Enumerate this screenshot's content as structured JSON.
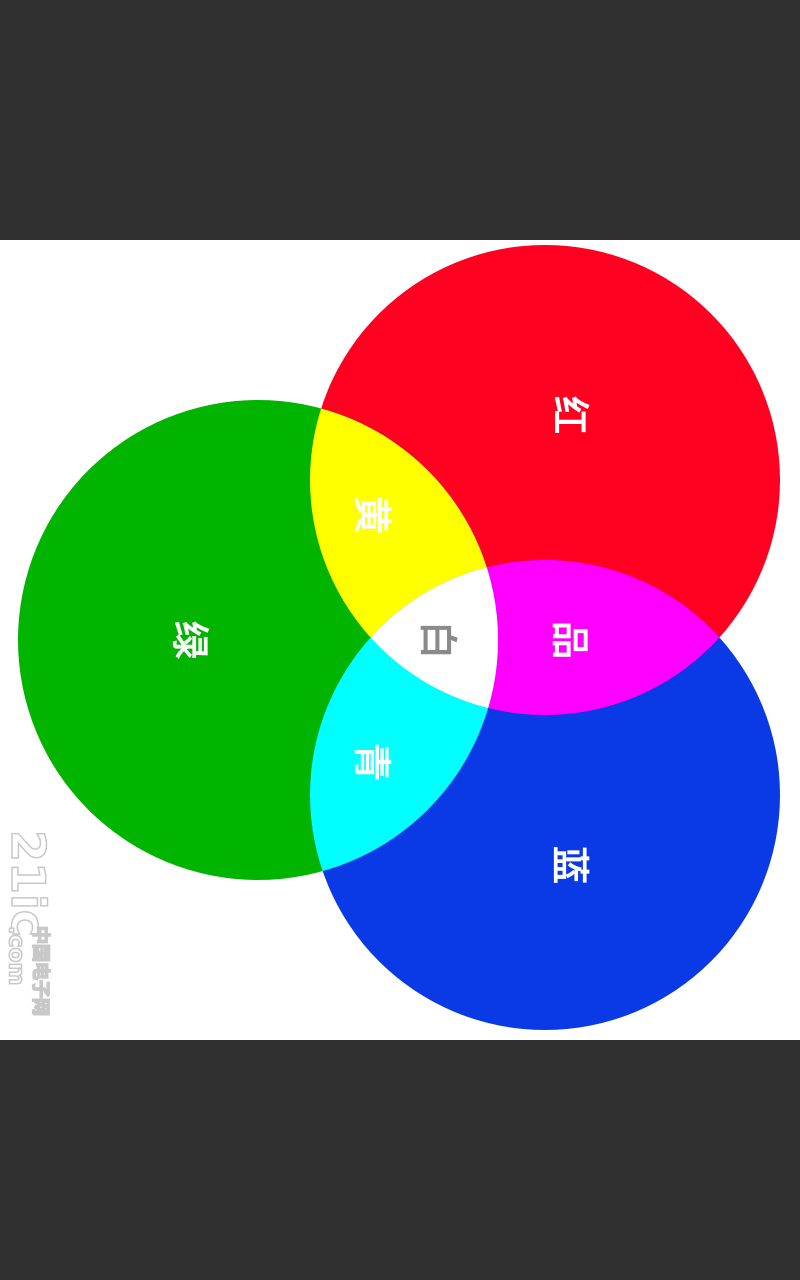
{
  "colors": {
    "background": "#ffffff",
    "letterbox": "#303030",
    "red": "#ff0020",
    "green": "#00b400",
    "blue": "#0a3ae6",
    "yellow": "#ffff00",
    "magenta": "#ff00ff",
    "cyan": "#00ffff",
    "white": "#ffffff",
    "label_light": "#ffffff",
    "label_dark": "#8a8a8a",
    "watermark": "#c8c8c8"
  },
  "diagram": {
    "type": "additive-color-venn",
    "orientation": "rotated-90-clockwise",
    "circles": [
      {
        "id": "red",
        "label": "红",
        "color_key": "red"
      },
      {
        "id": "green",
        "label": "绿",
        "color_key": "green"
      },
      {
        "id": "blue",
        "label": "蓝",
        "color_key": "blue"
      }
    ],
    "overlaps": [
      {
        "id": "yellow",
        "label": "黄",
        "sets": [
          "red",
          "green"
        ],
        "color_key": "yellow"
      },
      {
        "id": "magenta",
        "label": "品",
        "sets": [
          "red",
          "blue"
        ],
        "color_key": "magenta"
      },
      {
        "id": "cyan",
        "label": "青",
        "sets": [
          "green",
          "blue"
        ],
        "color_key": "cyan"
      },
      {
        "id": "white",
        "label": "白",
        "sets": [
          "red",
          "green",
          "blue"
        ],
        "color_key": "white"
      }
    ]
  },
  "watermark": {
    "brand": "21ic",
    "domain": ".com",
    "tagline": "中国电子网"
  }
}
